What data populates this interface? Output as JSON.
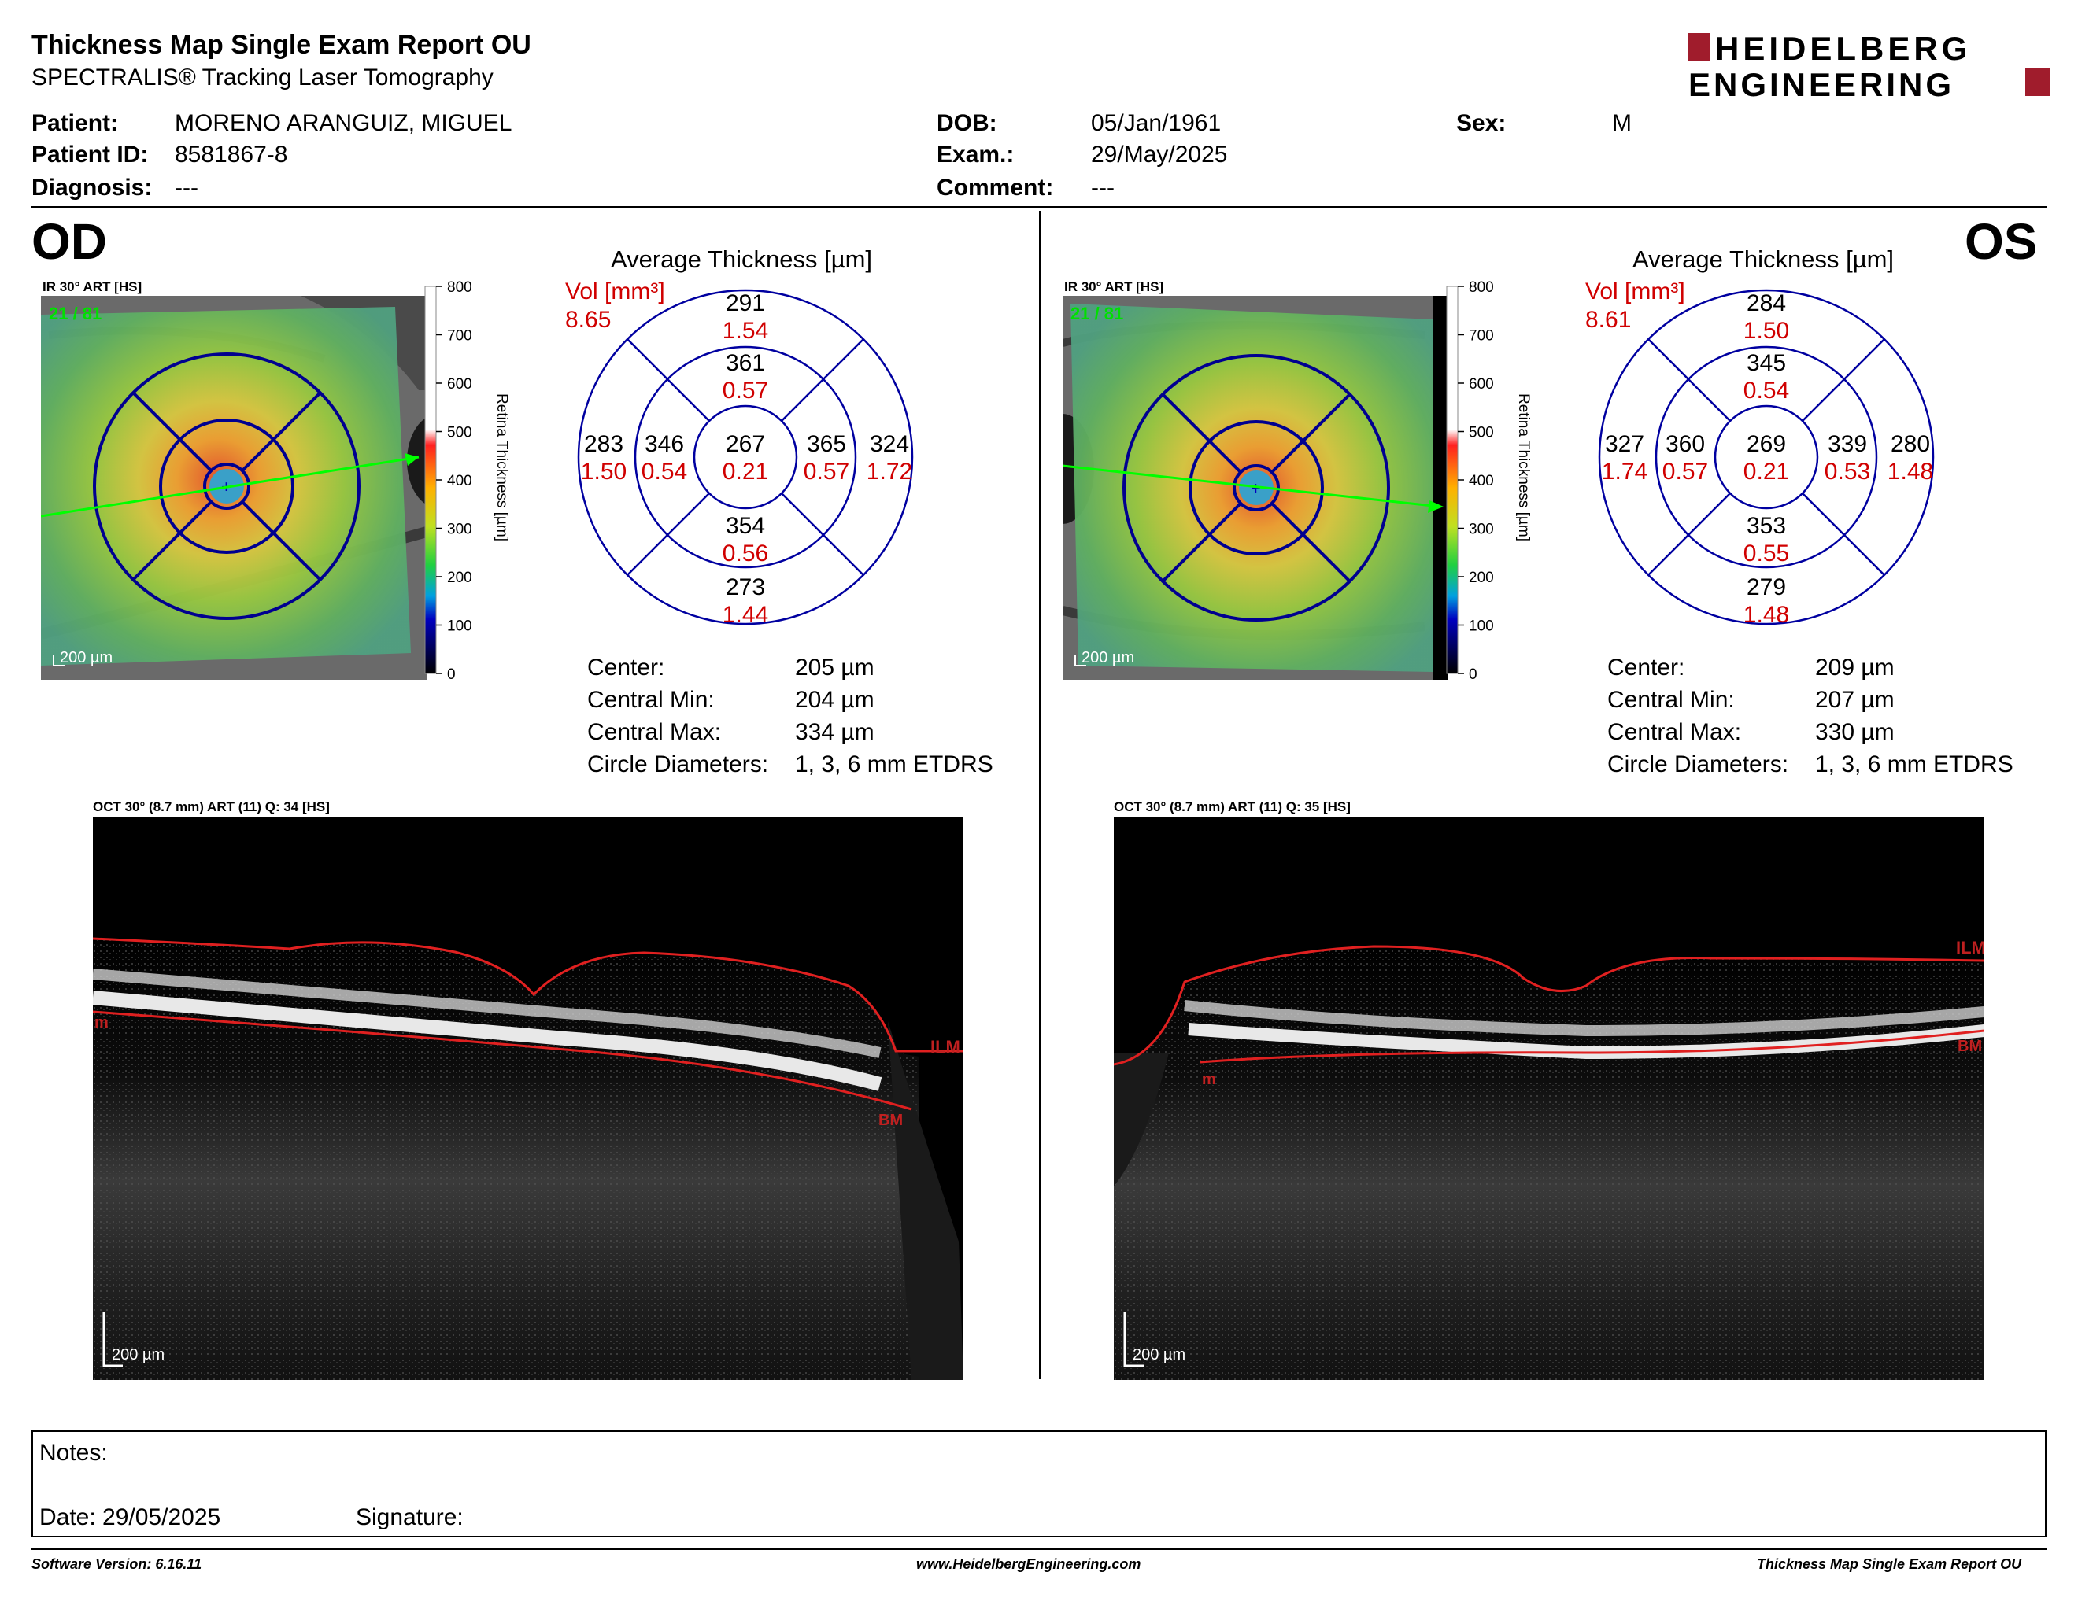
{
  "header": {
    "title": "Thickness Map Single Exam Report OU",
    "subtitle": "SPECTRALIS® Tracking Laser Tomography",
    "logo_line1": "HEIDELBERG",
    "logo_line2": "ENGINEERING"
  },
  "patient": {
    "patient_label": "Patient:",
    "patient_value": "MORENO ARANGUIZ, MIGUEL",
    "id_label": "Patient ID:",
    "id_value": "8581867-8",
    "diag_label": "Diagnosis:",
    "diag_value": "---",
    "dob_label": "DOB:",
    "dob_value": "05/Jan/1961",
    "exam_label": "Exam.:",
    "exam_value": "29/May/2025",
    "comment_label": "Comment:",
    "comment_value": "---",
    "sex_label": "Sex:",
    "sex_value": "M"
  },
  "colors": {
    "red_text": "#d00000",
    "grid_blue": "#0000a0",
    "logo_red": "#a01c2c"
  },
  "scale_bar": {
    "ticks": [
      "800",
      "700",
      "600",
      "500",
      "400",
      "300",
      "200",
      "100",
      "0"
    ],
    "label": "Retina  Thickness [µm]"
  },
  "od": {
    "eye": "OD",
    "ir_label": "IR 30° ART [HS]",
    "frames": "21 / 81",
    "scale": "200 µm",
    "avg_title": "Average Thickness [µm]",
    "vol_label": "Vol [mm³]",
    "vol_value": "8.65",
    "sectors": {
      "center": {
        "t": "267",
        "v": "0.21"
      },
      "inner_sup": {
        "t": "361",
        "v": "0.57"
      },
      "inner_inf": {
        "t": "354",
        "v": "0.56"
      },
      "inner_left": {
        "t": "346",
        "v": "0.54"
      },
      "inner_right": {
        "t": "365",
        "v": "0.57"
      },
      "outer_sup": {
        "t": "291",
        "v": "1.54"
      },
      "outer_inf": {
        "t": "273",
        "v": "1.44"
      },
      "outer_left": {
        "t": "283",
        "v": "1.50"
      },
      "outer_right": {
        "t": "324",
        "v": "1.72"
      }
    },
    "stats": [
      {
        "label": "Center:",
        "value": "205 µm"
      },
      {
        "label": "Central Min:",
        "value": "204 µm"
      },
      {
        "label": "Central Max:",
        "value": "334 µm"
      },
      {
        "label": "Circle Diameters:",
        "value": "1, 3, 6 mm ETDRS"
      }
    ],
    "oct_label": "OCT 30° (8.7 mm) ART (11) Q: 34 [HS]",
    "oct_scale": "200 µm",
    "ilm": "ILM",
    "bm": "BM",
    "m": "m"
  },
  "os": {
    "eye": "OS",
    "ir_label": "IR 30° ART [HS]",
    "frames": "21 / 81",
    "scale": "200 µm",
    "avg_title": "Average Thickness [µm]",
    "vol_label": "Vol [mm³]",
    "vol_value": "8.61",
    "sectors": {
      "center": {
        "t": "269",
        "v": "0.21"
      },
      "inner_sup": {
        "t": "345",
        "v": "0.54"
      },
      "inner_inf": {
        "t": "353",
        "v": "0.55"
      },
      "inner_left": {
        "t": "360",
        "v": "0.57"
      },
      "inner_right": {
        "t": "339",
        "v": "0.53"
      },
      "outer_sup": {
        "t": "284",
        "v": "1.50"
      },
      "outer_inf": {
        "t": "279",
        "v": "1.48"
      },
      "outer_left": {
        "t": "327",
        "v": "1.74"
      },
      "outer_right": {
        "t": "280",
        "v": "1.48"
      }
    },
    "stats": [
      {
        "label": "Center:",
        "value": "209 µm"
      },
      {
        "label": "Central Min:",
        "value": "207 µm"
      },
      {
        "label": "Central Max:",
        "value": "330 µm"
      },
      {
        "label": "Circle Diameters:",
        "value": "1, 3, 6 mm ETDRS"
      }
    ],
    "oct_label": "OCT 30° (8.7 mm) ART (11) Q: 35 [HS]",
    "oct_scale": "200 µm",
    "ilm": "ILM",
    "bm": "BM",
    "m": "m"
  },
  "notes": {
    "notes_label": "Notes:",
    "date_label": "Date: 29/05/2025",
    "signature_label": "Signature:"
  },
  "footer": {
    "software": "Software Version: 6.16.11",
    "website": "www.HeidelbergEngineering.com",
    "report": "Thickness Map Single Exam Report OU"
  }
}
